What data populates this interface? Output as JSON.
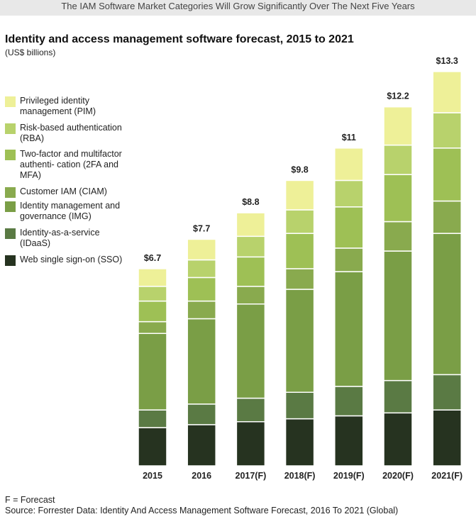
{
  "banner": "The IAM Software Market Categories Will Grow Significantly Over The Next Five Years",
  "footer": {
    "note": "F = Forecast",
    "source": "Source: Forrester Data: Identity And Access Management Software Forecast, 2016 To 2021 (Global)"
  },
  "chart_data": {
    "type": "bar",
    "stacked": true,
    "title": "Identity and access management software forecast, 2015 to 2021",
    "subtitle": "(US$ billions)",
    "categories": [
      "2015",
      "2016",
      "2017(F)",
      "2018(F)",
      "2019(F)",
      "2020(F)",
      "2021(F)"
    ],
    "totals": [
      "$6.7",
      "$7.7",
      "$8.8",
      "$9.8",
      "$11",
      "$12.2",
      "$13.3"
    ],
    "total_values": [
      6.7,
      7.7,
      8.8,
      9.8,
      11,
      12.2,
      13.3
    ],
    "legend_position": "left",
    "grid": false,
    "series": [
      {
        "name": "Web single sign-on (SSO)",
        "color": "#263320",
        "values": [
          1.3,
          1.4,
          1.5,
          1.6,
          1.7,
          1.8,
          1.9
        ]
      },
      {
        "name": "Identity-as-a-service (IDaaS)",
        "color": "#5a7a44",
        "values": [
          0.6,
          0.7,
          0.8,
          0.9,
          1.0,
          1.1,
          1.2
        ]
      },
      {
        "name": "Identity management and governance (IMG)",
        "color": "#7a9e46",
        "values": [
          2.6,
          2.9,
          3.2,
          3.5,
          3.9,
          4.4,
          4.8
        ]
      },
      {
        "name": "Customer IAM (CIAM)",
        "color": "#89aa4e",
        "values": [
          0.4,
          0.6,
          0.6,
          0.7,
          0.8,
          1.0,
          1.1
        ]
      },
      {
        "name": "Two-factor and multifactor authentication (2FA and MFA)",
        "color": "#9ec055",
        "values": [
          0.7,
          0.8,
          1.0,
          1.2,
          1.4,
          1.6,
          1.8
        ]
      },
      {
        "name": "Risk-based authentication (RBA)",
        "color": "#b8d26c",
        "values": [
          0.5,
          0.6,
          0.7,
          0.8,
          0.9,
          1.0,
          1.2
        ]
      },
      {
        "name": "Privileged identity management (PIM)",
        "color": "#eef098",
        "values": [
          0.6,
          0.7,
          0.8,
          1.0,
          1.1,
          1.3,
          1.4
        ]
      }
    ],
    "legend": [
      {
        "label": "Privileged identity management (PIM)",
        "color": "#eef098"
      },
      {
        "label": "Risk-based authentication (RBA)",
        "color": "#b8d26c"
      },
      {
        "label": "Two-factor and multifactor authenti- cation (2FA and MFA)",
        "color": "#9ec055"
      },
      {
        "label": "Customer IAM (CIAM)",
        "color": "#89aa4e"
      },
      {
        "label": "Identity management and governance (IMG)",
        "color": "#7a9e46"
      },
      {
        "label": "Identity-as-a-service (IDaaS)",
        "color": "#5a7a44"
      },
      {
        "label": "Web single sign-on (SSO)",
        "color": "#263320"
      }
    ]
  }
}
